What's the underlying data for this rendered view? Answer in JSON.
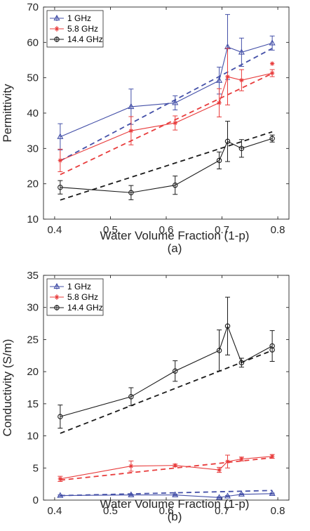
{
  "chart_data": [
    {
      "type": "line",
      "xlabel": "Water Volume Fraction (1-p)",
      "ylabel": "Permittivity",
      "caption": "(a)",
      "xlim": [
        0.38,
        0.82
      ],
      "ylim": [
        10,
        70
      ],
      "xticks": [
        0.4,
        0.5,
        0.6,
        0.7,
        0.8
      ],
      "yticks": [
        10,
        20,
        30,
        40,
        50,
        60,
        70
      ],
      "legend_position": "top-left",
      "grid": false,
      "x": [
        0.41,
        0.537,
        0.616,
        0.695,
        0.71,
        0.735,
        0.79
      ],
      "series": [
        {
          "name": "1 GHz",
          "color": "#4450a8",
          "marker": "triangle",
          "values": [
            33.3,
            41.8,
            42.9,
            49.2,
            58.7,
            57.2,
            59.8
          ],
          "errors": [
            3.7,
            5.0,
            2.0,
            3.8,
            9.2,
            4.0,
            2.0
          ],
          "fit_line": [
            26.5,
            58.3
          ]
        },
        {
          "name": "5.8 GHz",
          "color": "#e83c3c",
          "marker": "asterisk",
          "values": [
            26.6,
            35.0,
            37.2,
            42.9,
            50.3,
            49.3,
            51.3
          ],
          "errors": [
            3.2,
            4.0,
            2.0,
            4.0,
            8.0,
            3.0,
            1.0
          ],
          "fit_line": [
            22.6,
            51.2
          ]
        },
        {
          "name": "14.4 GHz",
          "color": "#1a1a1a",
          "marker": "circle",
          "values": [
            19.0,
            17.5,
            19.6,
            26.6,
            32.0,
            30.0,
            32.8
          ],
          "errors": [
            1.9,
            2.0,
            2.6,
            2.4,
            5.7,
            2.5,
            1.0
          ],
          "fit_line": [
            15.4,
            34.7
          ]
        }
      ],
      "extra_markers": [
        {
          "series": "5.8 GHz",
          "x": 0.79,
          "y": 54.0
        }
      ]
    },
    {
      "type": "line",
      "xlabel": "Water Volume Fraction (1-p)",
      "ylabel": "Conductivity (S/m)",
      "caption": "(b)",
      "xlim": [
        0.38,
        0.82
      ],
      "ylim": [
        0,
        35
      ],
      "xticks": [
        0.4,
        0.5,
        0.6,
        0.7,
        0.8
      ],
      "yticks": [
        0,
        5,
        10,
        15,
        20,
        25,
        30,
        35
      ],
      "legend_position": "top-left",
      "grid": false,
      "x": [
        0.41,
        0.537,
        0.616,
        0.695,
        0.71,
        0.735,
        0.79
      ],
      "series": [
        {
          "name": "1 GHz",
          "color": "#4450a8",
          "marker": "triangle",
          "values": [
            0.7,
            0.8,
            0.8,
            0.4,
            0.6,
            0.9,
            1.0
          ],
          "errors": [
            0.1,
            0.1,
            0.1,
            0.1,
            0.1,
            0.1,
            0.1
          ],
          "fit_line": [
            0.7,
            1.5
          ]
        },
        {
          "name": "5.8 GHz",
          "color": "#e83c3c",
          "marker": "asterisk",
          "values": [
            3.3,
            5.3,
            5.4,
            4.7,
            6.0,
            6.4,
            6.8
          ],
          "errors": [
            0.4,
            0.8,
            0.2,
            0.4,
            1.0,
            0.3,
            0.3
          ],
          "fit_line": [
            3.1,
            6.6
          ]
        },
        {
          "name": "14.4 GHz",
          "color": "#1a1a1a",
          "marker": "circle",
          "values": [
            13.0,
            16.1,
            20.1,
            23.3,
            27.1,
            21.4,
            24.0
          ],
          "errors": [
            1.8,
            1.4,
            1.6,
            3.2,
            4.5,
            0.7,
            2.4
          ],
          "fit_line": [
            10.4,
            23.3
          ]
        }
      ],
      "extra_markers": [
        {
          "series": "14.4 GHz",
          "x": 0.79,
          "y": 23.4
        }
      ]
    }
  ]
}
